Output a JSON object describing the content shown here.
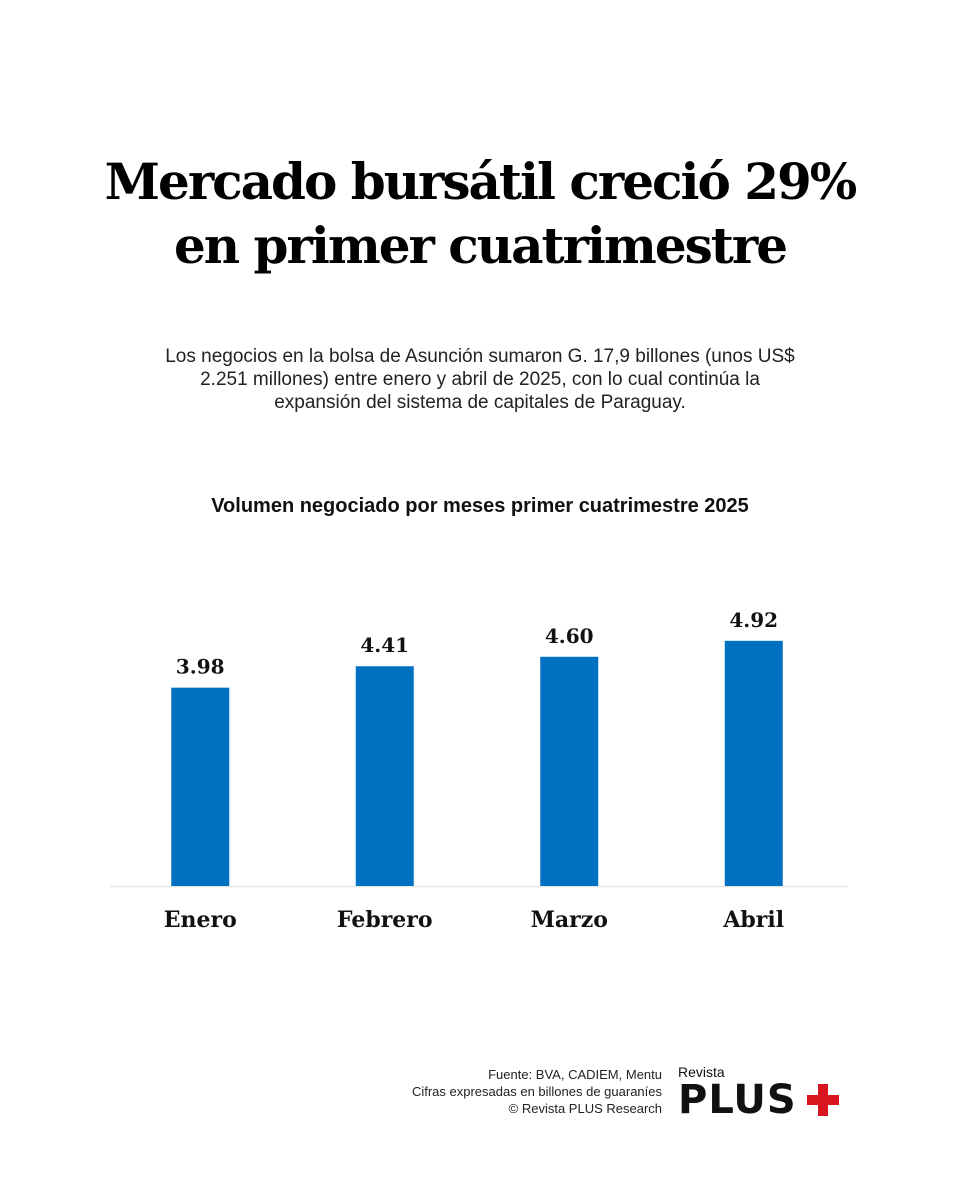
{
  "header": {
    "title_line1": "Mercado bursátil creció 29%",
    "title_line2": "en primer cuatrimestre",
    "subtitle": "Los negocios en la bolsa de Asunción sumaron G. 17,9 billones (unos US$ 2.251 millones) entre enero y abril de 2025, con lo cual continúa la expansión del sistema de capitales de Paraguay."
  },
  "chart_data": {
    "type": "bar",
    "title": "Volumen negociado por meses primer cuatrimestre 2025",
    "categories": [
      "Enero",
      "Febrero",
      "Marzo",
      "Abril"
    ],
    "values": [
      3.98,
      4.41,
      4.6,
      4.92
    ],
    "data_labels": [
      "3.98",
      "4.41",
      "4.60",
      "4.92"
    ],
    "xlabel": "",
    "ylabel": "",
    "ylim": [
      0,
      6
    ],
    "grid": false,
    "bar_color": "#0070c0"
  },
  "footer": {
    "source": "Fuente: BVA, CADIEM, Mentu",
    "units": "Cifras expresadas en billones de guaraníes",
    "copyright": "© Revista PLUS Research"
  },
  "logo": {
    "small": "Revista",
    "big": "PLUS",
    "accent": "#d9141e"
  }
}
